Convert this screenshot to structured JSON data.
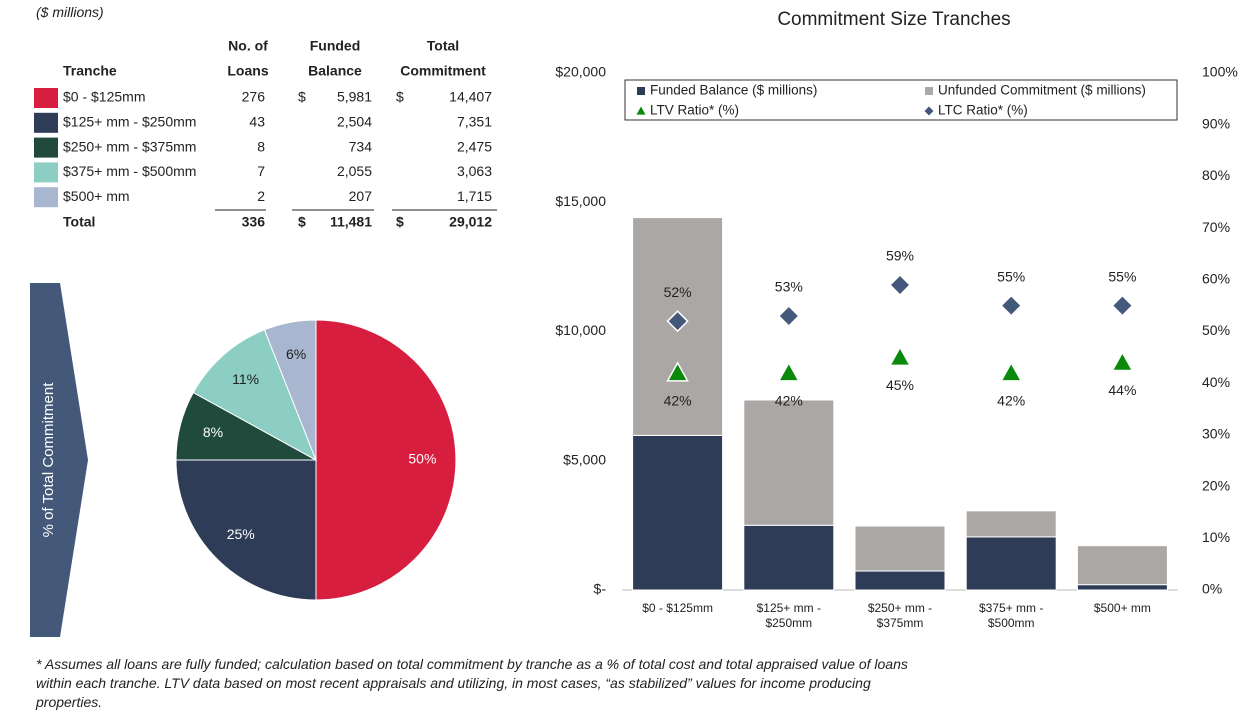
{
  "units_note": "($ millions)",
  "table": {
    "header": [
      [
        "Tranche"
      ],
      [
        "No. of",
        "Loans"
      ],
      [
        "Funded",
        "Balance"
      ],
      [
        "Total",
        "Commitment"
      ]
    ],
    "rows": [
      {
        "color": "#d71e3f",
        "tranche": "$0 - $125mm",
        "loans": "276",
        "currency": "$",
        "funded": "5,981",
        "commitment": "14,407"
      },
      {
        "color": "#2e3c57",
        "tranche": "$125+ mm - $250mm",
        "loans": "43",
        "funded": "2,504",
        "commitment": "7,351"
      },
      {
        "color": "#1f4a3c",
        "tranche": "$250+ mm - $375mm",
        "loans": "8",
        "funded": "734",
        "commitment": "2,475"
      },
      {
        "color": "#8ccdc4",
        "tranche": "$375+ mm - $500mm",
        "loans": "7",
        "funded": "2,055",
        "commitment": "3,063"
      },
      {
        "color": "#a9b6cf",
        "tranche": "$500+ mm",
        "loans": "2",
        "funded": "207",
        "commitment": "1,715"
      }
    ],
    "total": {
      "tranche": "Total",
      "loans": "336",
      "currency": "$",
      "funded": "11,481",
      "commitment": "29,012"
    }
  },
  "side_label": "% of Total Commitment",
  "chart_data": [
    {
      "type": "pie",
      "values": [
        50,
        25,
        8,
        11,
        6
      ],
      "value_labels": [
        "50%",
        "25%",
        "8%",
        "11%",
        "6%"
      ],
      "colors": [
        "#d71e3f",
        "#2e3c57",
        "#1f4a3c",
        "#8ccdc4",
        "#a9b6cf"
      ],
      "label_colors": [
        "#ffffff",
        "#ffffff",
        "#ffffff",
        "#222222",
        "#222222"
      ]
    },
    {
      "type": "stacked_bar",
      "title": "Commitment Size Tranches",
      "categories": [
        "$0 - $125mm",
        "$125+ mm - $250mm",
        "$250+ mm - $375mm",
        "$375+ mm - $500mm",
        "$500+ mm"
      ],
      "series": [
        {
          "name": "Funded Balance ($ millions)",
          "color": "#2e3c57",
          "values": [
            5981,
            2504,
            734,
            2055,
            207
          ]
        },
        {
          "name": "Unfunded Commitment ($ millions)",
          "color": "#aba7a5",
          "values": [
            8426,
            4847,
            1741,
            1008,
            1508
          ]
        },
        {
          "name": "LTV Ratio* (%)",
          "color": "#0a8a0a",
          "marker": "triangle",
          "axis": "y2",
          "values": [
            42,
            42,
            45,
            42,
            44
          ],
          "value_labels": [
            "42%",
            "42%",
            "45%",
            "42%",
            "44%"
          ]
        },
        {
          "name": "LTC Ratio* (%)",
          "color": "#43587a",
          "marker": "diamond",
          "axis": "y2",
          "values": [
            52,
            53,
            59,
            55,
            55
          ],
          "value_labels": [
            "52%",
            "53%",
            "59%",
            "55%",
            "55%"
          ]
        }
      ],
      "ylim": [
        0,
        20000
      ],
      "yticks": [
        {
          "value": 0,
          "label": "$-"
        },
        {
          "value": 5000,
          "label": "$5,000"
        },
        {
          "value": 10000,
          "label": "$10,000"
        },
        {
          "value": 15000,
          "label": "$15,000"
        },
        {
          "value": 20000,
          "label": "$20,000"
        }
      ],
      "y2lim": [
        0,
        100
      ],
      "y2ticks": [
        {
          "value": 0,
          "label": "0%"
        },
        {
          "value": 10,
          "label": "10%"
        },
        {
          "value": 20,
          "label": "20%"
        },
        {
          "value": 30,
          "label": "30%"
        },
        {
          "value": 40,
          "label": "40%"
        },
        {
          "value": 50,
          "label": "50%"
        },
        {
          "value": 60,
          "label": "60%"
        },
        {
          "value": 70,
          "label": "70%"
        },
        {
          "value": 80,
          "label": "80%"
        },
        {
          "value": 90,
          "label": "90%"
        },
        {
          "value": 100,
          "label": "100%"
        }
      ],
      "legend": "top",
      "grid": false
    }
  ],
  "footnote": "* Assumes all loans are fully funded; calculation based on total commitment by tranche as a % of total cost and total appraised value of loans within each tranche. LTV data based on most recent appraisals and utilizing, in most cases, “as stabilized” values for income producing properties."
}
